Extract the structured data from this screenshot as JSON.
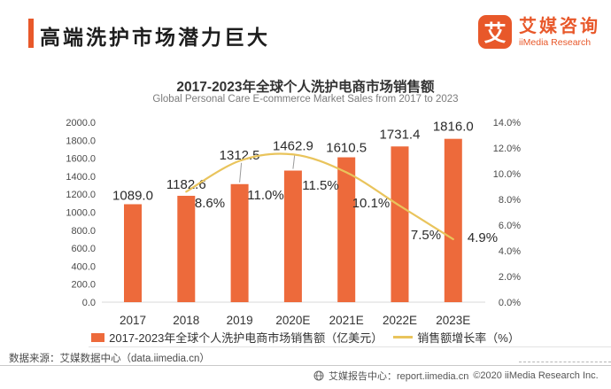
{
  "colors": {
    "accent": "#E8582A",
    "bar": "#ED6A3B",
    "line": "#E9C45C"
  },
  "header": {
    "title": "高端洗护市场潜力巨大",
    "logo": {
      "icon_char": "艾",
      "name_cn": "艾媒咨询",
      "name_en": "iiMedia Research"
    }
  },
  "chart_data": {
    "type": "bar",
    "title": "2017-2023年全球个人洗护电商市场销售额",
    "subtitle": "Global Personal Care E-commerce Market Sales from 2017 to 2023",
    "categories": [
      "2017",
      "2018",
      "2019",
      "2020E",
      "2021E",
      "2022E",
      "2023E"
    ],
    "series": [
      {
        "name": "2017-2023年全球个人洗护电商市场销售额（亿美元）",
        "type": "bar",
        "axis": "left",
        "color": "#ED6A3B",
        "values": [
          1089.0,
          1182.6,
          1312.5,
          1462.9,
          1610.5,
          1731.4,
          1816.0
        ],
        "labels": [
          "1089.0",
          "1182.6",
          "1312.5",
          "1462.9",
          "1610.5",
          "1731.4",
          "1816.0"
        ]
      },
      {
        "name": "销售额增长率（%）",
        "type": "line",
        "axis": "right",
        "color": "#E9C45C",
        "values": [
          null,
          8.6,
          11.0,
          11.5,
          10.1,
          7.5,
          4.9
        ],
        "labels": [
          "",
          "8.6%",
          "11.0%",
          "11.5%",
          "10.1%",
          "7.5%",
          "4.9%"
        ]
      }
    ],
    "left_axis": {
      "min": 0,
      "max": 2000,
      "ticks": [
        "2000.0",
        "1800.0",
        "1600.0",
        "1400.0",
        "1200.0",
        "1000.0",
        "800.0",
        "600.0",
        "400.0",
        "200.0",
        "0.0"
      ]
    },
    "right_axis": {
      "min": 0,
      "max": 14,
      "ticks": [
        "14.0%",
        "12.0%",
        "10.0%",
        "8.0%",
        "6.0%",
        "4.0%",
        "2.0%",
        "0.0%"
      ]
    },
    "grid": false,
    "legend_position": "bottom"
  },
  "footer": {
    "source": "数据来源：艾媒数据中心（data.iimedia.cn）",
    "report_line": "艾媒报告中心：report.iimedia.cn",
    "copyright": "©2020  iiMedia Research Inc."
  }
}
